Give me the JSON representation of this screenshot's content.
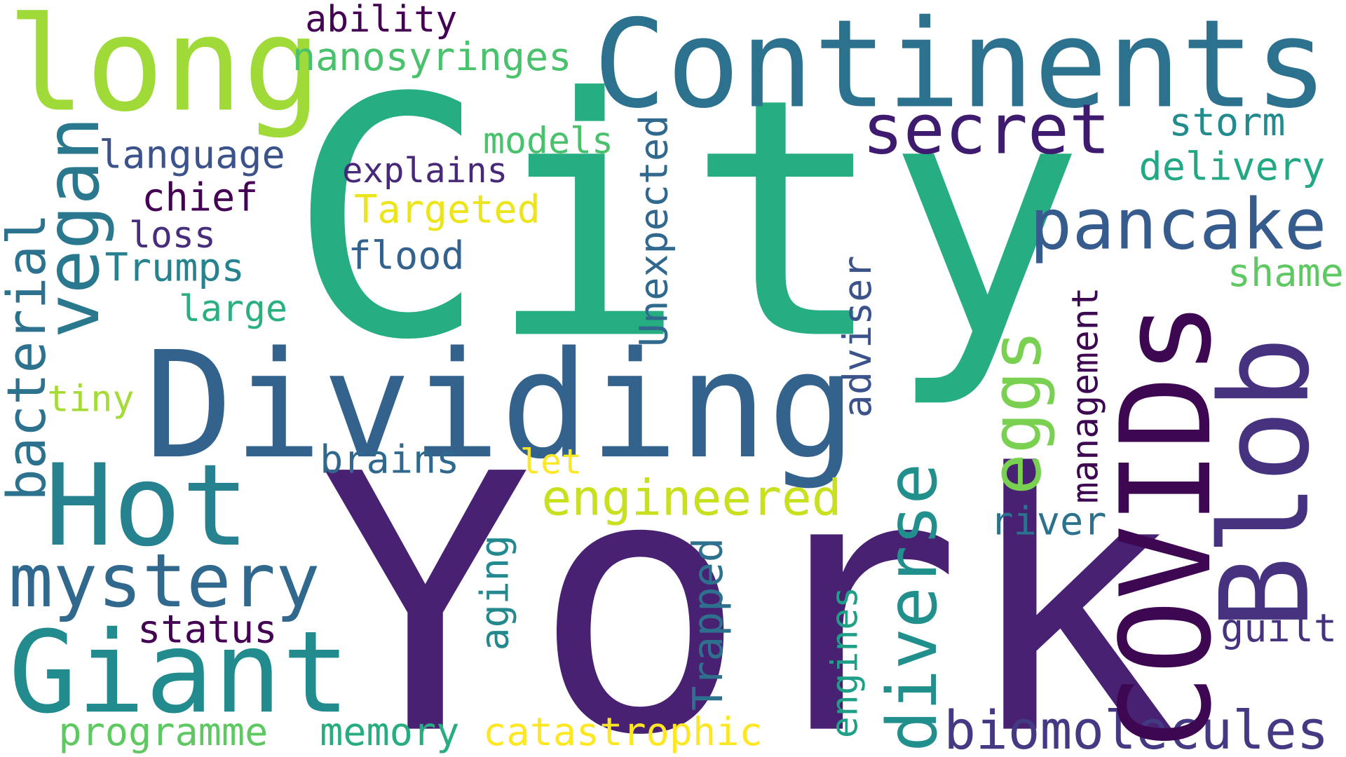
{
  "words": {
    "city": {
      "text": "City",
      "color": "#26ad81"
    },
    "york": {
      "text": "York",
      "color": "#482173"
    },
    "continents": {
      "text": "Continents",
      "color": "#2c728e"
    },
    "dividing": {
      "text": "Dividing",
      "color": "#33638d"
    },
    "long": {
      "text": "long",
      "color": "#a0da39"
    },
    "hot": {
      "text": "Hot",
      "color": "#26828e"
    },
    "giant": {
      "text": "Giant",
      "color": "#228b8d"
    },
    "covids": {
      "text": "COVIDs",
      "color": "#3e0751"
    },
    "blob": {
      "text": "Blob",
      "color": "#46327e"
    },
    "vegan": {
      "text": "vegan",
      "color": "#2a788e"
    },
    "mystery": {
      "text": "mystery",
      "color": "#31688e"
    },
    "secret": {
      "text": "secret",
      "color": "#3e1b6e"
    },
    "pancake": {
      "text": "pancake",
      "color": "#365c8d"
    },
    "diverse": {
      "text": "diverse",
      "color": "#21908c"
    },
    "eggs": {
      "text": "eggs",
      "color": "#7ad151"
    },
    "biomolecules": {
      "text": "biomolecules",
      "color": "#443a83"
    },
    "engineered": {
      "text": "engineered",
      "color": "#c8e020"
    },
    "bacterial": {
      "text": "bacterial",
      "color": "#2c728e"
    },
    "ability": {
      "text": "ability",
      "color": "#440154"
    },
    "nanosyringes": {
      "text": "nanosyringes",
      "color": "#4ac16d"
    },
    "language": {
      "text": "language",
      "color": "#3b528b"
    },
    "chief": {
      "text": "chief",
      "color": "#440154"
    },
    "loss": {
      "text": "loss",
      "color": "#472d7b"
    },
    "trumps": {
      "text": "Trumps",
      "color": "#26828e"
    },
    "large": {
      "text": "large",
      "color": "#2ab07f"
    },
    "tiny": {
      "text": "tiny",
      "color": "#a5db36"
    },
    "models": {
      "text": "models",
      "color": "#4ac16d"
    },
    "explains": {
      "text": "explains",
      "color": "#482878"
    },
    "targeted": {
      "text": "Targeted",
      "color": "#ece51b"
    },
    "flood": {
      "text": "flood",
      "color": "#33638d"
    },
    "unexpected": {
      "text": "Unexpected",
      "color": "#31688e"
    },
    "storm": {
      "text": "storm",
      "color": "#228b8d"
    },
    "delivery": {
      "text": "delivery",
      "color": "#22a884"
    },
    "shame": {
      "text": "shame",
      "color": "#5ec962"
    },
    "adviser": {
      "text": "adviser",
      "color": "#3b528b"
    },
    "management": {
      "text": "management",
      "color": "#3e0751"
    },
    "brains": {
      "text": "brains",
      "color": "#31688e"
    },
    "let": {
      "text": "let",
      "color": "#fde725"
    },
    "status": {
      "text": "status",
      "color": "#440154"
    },
    "aging": {
      "text": "aging",
      "color": "#23898e"
    },
    "trapped": {
      "text": "Trapped",
      "color": "#2d718e"
    },
    "engines": {
      "text": "engines",
      "color": "#1f9f88"
    },
    "river": {
      "text": "river",
      "color": "#2c728e"
    },
    "guilt": {
      "text": "guilt",
      "color": "#46327e"
    },
    "programme": {
      "text": "programme",
      "color": "#5ec962"
    },
    "memory": {
      "text": "memory",
      "color": "#27ad81"
    },
    "catastrophic": {
      "text": "catastrophic",
      "color": "#fde725"
    }
  }
}
